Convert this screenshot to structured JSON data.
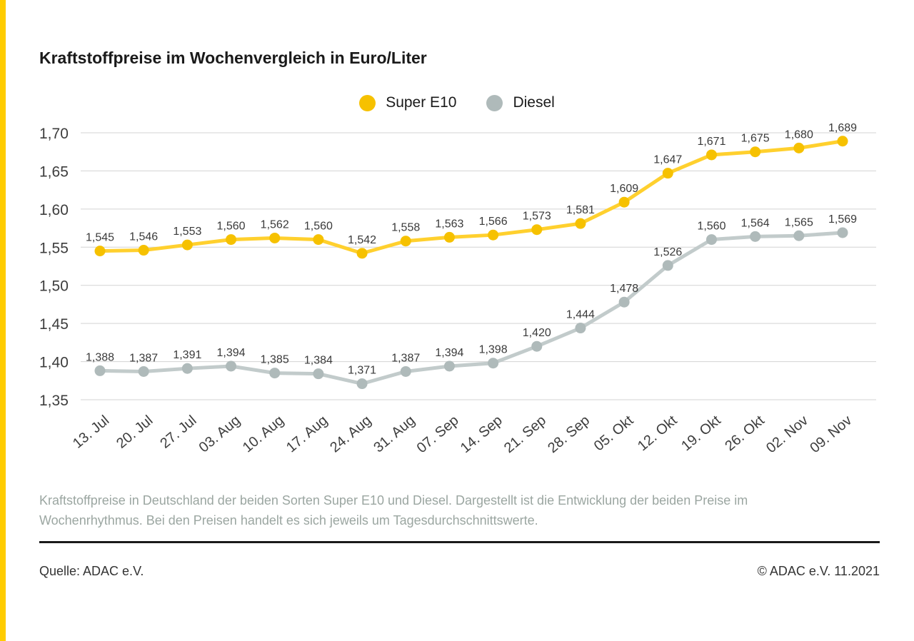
{
  "page": {
    "title": "Kraftstoffpreise im Wochenvergleich in Euro/Liter",
    "caption": "Kraftstoffpreise in Deutschland der beiden Sorten Super E10 und Diesel. Dargestellt ist die Entwicklung der beiden Preise im Wochenrhythmus. Bei den Preisen handelt es sich jeweils um Tagesdurchschnittswerte.",
    "source": "Quelle: ADAC e.V.",
    "copyright": "© ADAC e.V. 11.2021",
    "accent_yellow": "#FFCC00"
  },
  "chart_data": {
    "type": "line",
    "title": "Kraftstoffpreise im Wochenvergleich in Euro/Liter",
    "unit": "Euro/Liter",
    "categories": [
      "13. Jul",
      "20. Jul",
      "27. Jul",
      "03. Aug",
      "10. Aug",
      "17. Aug",
      "24. Aug",
      "31. Aug",
      "07. Sep",
      "14. Sep",
      "21. Sep",
      "28. Sep",
      "05. Okt",
      "12. Okt",
      "19. Okt",
      "26. Okt",
      "02. Nov",
      "09. Nov"
    ],
    "series": [
      {
        "name": "Super E10",
        "line_color": "#FFD02E",
        "dot_color": "#F6C100",
        "values": [
          1.545,
          1.546,
          1.553,
          1.56,
          1.562,
          1.56,
          1.542,
          1.558,
          1.563,
          1.566,
          1.573,
          1.581,
          1.609,
          1.647,
          1.671,
          1.675,
          1.68,
          1.689
        ]
      },
      {
        "name": "Diesel",
        "line_color": "#C2CBCB",
        "dot_color": "#AFBABA",
        "values": [
          1.388,
          1.387,
          1.391,
          1.394,
          1.385,
          1.384,
          1.371,
          1.387,
          1.394,
          1.398,
          1.42,
          1.444,
          1.478,
          1.526,
          1.56,
          1.564,
          1.565,
          1.569
        ]
      }
    ],
    "yticks": [
      1.7,
      1.65,
      1.6,
      1.55,
      1.5,
      1.45,
      1.4,
      1.35
    ],
    "ylim": [
      1.33,
      1.72
    ],
    "decimal_separator": ",",
    "grid": true,
    "legend_position": "top-center",
    "grid_color": "#D3D3D3",
    "label_color": "#3A3A3A",
    "axis_text_color": "#3D3D3D"
  }
}
